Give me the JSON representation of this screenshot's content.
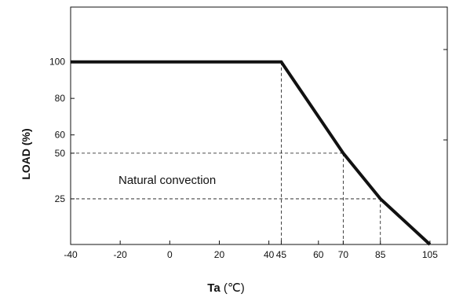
{
  "chart_data": {
    "type": "line",
    "title": "",
    "xlabel": "Ta",
    "xlabel_unit": "(℃)",
    "ylabel": "LOAD (%)",
    "xlim": [
      -40,
      112
    ],
    "ylim": [
      0,
      130
    ],
    "grid": false,
    "x_ticks": [
      "-40",
      "-20",
      "0",
      "20",
      "40",
      "45",
      "60",
      "70",
      "85",
      "105"
    ],
    "y_ticks": [
      "100",
      "80",
      "60",
      "50",
      "25"
    ],
    "series": [
      {
        "x": [
          -40,
          45,
          70,
          85,
          105
        ],
        "y": [
          100,
          100,
          50,
          25,
          0
        ]
      }
    ],
    "annotations": [
      {
        "text": "Natural convection"
      }
    ],
    "guide_points": [
      {
        "x": 45,
        "y": 100
      },
      {
        "x": 70,
        "y": 50
      },
      {
        "x": 85,
        "y": 25
      }
    ],
    "colors": {
      "line": "#111111",
      "axis": "#111111",
      "guide": "#111111"
    }
  }
}
